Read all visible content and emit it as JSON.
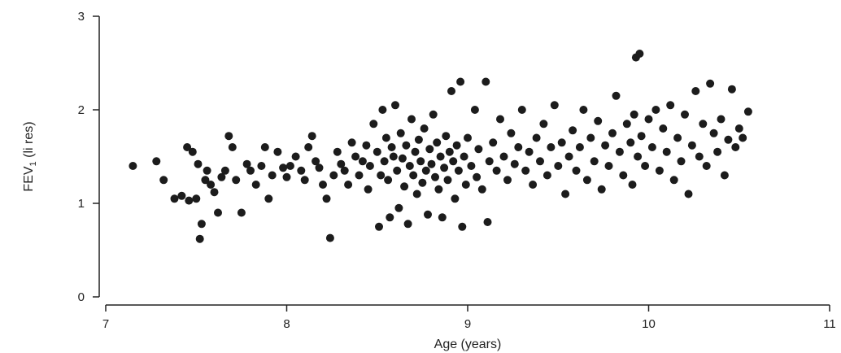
{
  "chart_data": {
    "type": "scatter",
    "title": "",
    "xlabel": "Age (years)",
    "ylabel": "FEV",
    "ylabel_sub": "1",
    "ylabel_unit": " (li res)",
    "xlim": [
      7,
      11
    ],
    "ylim": [
      0,
      3
    ],
    "xticks": [
      7,
      8,
      9,
      10,
      11
    ],
    "xtick_labels": [
      "7",
      "8",
      "9",
      "10",
      "11"
    ],
    "yticks": [
      0,
      1,
      2,
      3
    ],
    "ytick_labels": [
      "0",
      "1",
      "2",
      "3"
    ],
    "grid": false,
    "legend": "none",
    "point_color": "#1c1c1c",
    "series": [
      {
        "values": [
          [
            7.15,
            1.4
          ],
          [
            7.28,
            1.45
          ],
          [
            7.32,
            1.25
          ],
          [
            7.38,
            1.05
          ],
          [
            7.42,
            1.08
          ],
          [
            7.45,
            1.6
          ],
          [
            7.46,
            1.03
          ],
          [
            7.48,
            1.55
          ],
          [
            7.5,
            1.05
          ],
          [
            7.51,
            1.42
          ],
          [
            7.52,
            0.62
          ],
          [
            7.53,
            0.78
          ],
          [
            7.55,
            1.25
          ],
          [
            7.56,
            1.35
          ],
          [
            7.58,
            1.2
          ],
          [
            7.6,
            1.12
          ],
          [
            7.62,
            0.9
          ],
          [
            7.64,
            1.28
          ],
          [
            7.66,
            1.35
          ],
          [
            7.68,
            1.72
          ],
          [
            7.7,
            1.6
          ],
          [
            7.72,
            1.25
          ],
          [
            7.75,
            0.9
          ],
          [
            7.78,
            1.42
          ],
          [
            7.8,
            1.35
          ],
          [
            7.83,
            1.2
          ],
          [
            7.86,
            1.4
          ],
          [
            7.88,
            1.6
          ],
          [
            7.9,
            1.05
          ],
          [
            7.92,
            1.3
          ],
          [
            7.95,
            1.55
          ],
          [
            7.98,
            1.38
          ],
          [
            8.0,
            1.28
          ],
          [
            8.02,
            1.4
          ],
          [
            8.05,
            1.5
          ],
          [
            8.08,
            1.35
          ],
          [
            8.1,
            1.25
          ],
          [
            8.12,
            1.6
          ],
          [
            8.14,
            1.72
          ],
          [
            8.16,
            1.45
          ],
          [
            8.18,
            1.38
          ],
          [
            8.2,
            1.2
          ],
          [
            8.22,
            1.05
          ],
          [
            8.24,
            0.63
          ],
          [
            8.26,
            1.3
          ],
          [
            8.28,
            1.55
          ],
          [
            8.3,
            1.42
          ],
          [
            8.32,
            1.35
          ],
          [
            8.34,
            1.2
          ],
          [
            8.36,
            1.65
          ],
          [
            8.38,
            1.5
          ],
          [
            8.4,
            1.3
          ],
          [
            8.42,
            1.45
          ],
          [
            8.44,
            1.62
          ],
          [
            8.45,
            1.15
          ],
          [
            8.46,
            1.4
          ],
          [
            8.48,
            1.85
          ],
          [
            8.5,
            1.55
          ],
          [
            8.51,
            0.75
          ],
          [
            8.52,
            1.3
          ],
          [
            8.53,
            2.0
          ],
          [
            8.54,
            1.45
          ],
          [
            8.55,
            1.7
          ],
          [
            8.56,
            1.25
          ],
          [
            8.57,
            0.85
          ],
          [
            8.58,
            1.6
          ],
          [
            8.59,
            1.5
          ],
          [
            8.6,
            2.05
          ],
          [
            8.61,
            1.35
          ],
          [
            8.62,
            0.95
          ],
          [
            8.63,
            1.75
          ],
          [
            8.64,
            1.48
          ],
          [
            8.65,
            1.18
          ],
          [
            8.66,
            1.62
          ],
          [
            8.67,
            0.78
          ],
          [
            8.68,
            1.4
          ],
          [
            8.69,
            1.9
          ],
          [
            8.7,
            1.3
          ],
          [
            8.71,
            1.55
          ],
          [
            8.72,
            1.1
          ],
          [
            8.73,
            1.68
          ],
          [
            8.74,
            1.45
          ],
          [
            8.75,
            1.22
          ],
          [
            8.76,
            1.8
          ],
          [
            8.77,
            1.35
          ],
          [
            8.78,
            0.88
          ],
          [
            8.79,
            1.58
          ],
          [
            8.8,
            1.42
          ],
          [
            8.81,
            1.95
          ],
          [
            8.82,
            1.28
          ],
          [
            8.83,
            1.65
          ],
          [
            8.84,
            1.15
          ],
          [
            8.85,
            1.5
          ],
          [
            8.86,
            0.85
          ],
          [
            8.87,
            1.38
          ],
          [
            8.88,
            1.72
          ],
          [
            8.89,
            1.25
          ],
          [
            8.9,
            1.55
          ],
          [
            8.91,
            2.2
          ],
          [
            8.92,
            1.45
          ],
          [
            8.93,
            1.05
          ],
          [
            8.94,
            1.62
          ],
          [
            8.95,
            1.35
          ],
          [
            8.96,
            2.3
          ],
          [
            8.97,
            0.75
          ],
          [
            8.98,
            1.5
          ],
          [
            8.99,
            1.2
          ],
          [
            9.0,
            1.7
          ],
          [
            9.02,
            1.4
          ],
          [
            9.04,
            2.0
          ],
          [
            9.05,
            1.28
          ],
          [
            9.06,
            1.58
          ],
          [
            9.08,
            1.15
          ],
          [
            9.1,
            2.3
          ],
          [
            9.11,
            0.8
          ],
          [
            9.12,
            1.45
          ],
          [
            9.14,
            1.65
          ],
          [
            9.16,
            1.35
          ],
          [
            9.18,
            1.9
          ],
          [
            9.2,
            1.5
          ],
          [
            9.22,
            1.25
          ],
          [
            9.24,
            1.75
          ],
          [
            9.26,
            1.42
          ],
          [
            9.28,
            1.6
          ],
          [
            9.3,
            2.0
          ],
          [
            9.32,
            1.35
          ],
          [
            9.34,
            1.55
          ],
          [
            9.36,
            1.2
          ],
          [
            9.38,
            1.7
          ],
          [
            9.4,
            1.45
          ],
          [
            9.42,
            1.85
          ],
          [
            9.44,
            1.3
          ],
          [
            9.46,
            1.6
          ],
          [
            9.48,
            2.05
          ],
          [
            9.5,
            1.4
          ],
          [
            9.52,
            1.65
          ],
          [
            9.54,
            1.1
          ],
          [
            9.56,
            1.5
          ],
          [
            9.58,
            1.78
          ],
          [
            9.6,
            1.35
          ],
          [
            9.62,
            1.6
          ],
          [
            9.64,
            2.0
          ],
          [
            9.66,
            1.25
          ],
          [
            9.68,
            1.7
          ],
          [
            9.7,
            1.45
          ],
          [
            9.72,
            1.88
          ],
          [
            9.74,
            1.15
          ],
          [
            9.76,
            1.62
          ],
          [
            9.78,
            1.4
          ],
          [
            9.8,
            1.75
          ],
          [
            9.82,
            2.15
          ],
          [
            9.84,
            1.55
          ],
          [
            9.86,
            1.3
          ],
          [
            9.88,
            1.85
          ],
          [
            9.9,
            1.65
          ],
          [
            9.91,
            1.2
          ],
          [
            9.92,
            1.95
          ],
          [
            9.93,
            2.56
          ],
          [
            9.94,
            1.5
          ],
          [
            9.95,
            2.6
          ],
          [
            9.96,
            1.72
          ],
          [
            9.98,
            1.4
          ],
          [
            10.0,
            1.9
          ],
          [
            10.02,
            1.6
          ],
          [
            10.04,
            2.0
          ],
          [
            10.06,
            1.35
          ],
          [
            10.08,
            1.8
          ],
          [
            10.1,
            1.55
          ],
          [
            10.12,
            2.05
          ],
          [
            10.14,
            1.25
          ],
          [
            10.16,
            1.7
          ],
          [
            10.18,
            1.45
          ],
          [
            10.2,
            1.95
          ],
          [
            10.22,
            1.1
          ],
          [
            10.24,
            1.62
          ],
          [
            10.26,
            2.2
          ],
          [
            10.28,
            1.5
          ],
          [
            10.3,
            1.85
          ],
          [
            10.32,
            1.4
          ],
          [
            10.34,
            2.28
          ],
          [
            10.36,
            1.75
          ],
          [
            10.38,
            1.55
          ],
          [
            10.4,
            1.9
          ],
          [
            10.42,
            1.3
          ],
          [
            10.44,
            1.68
          ],
          [
            10.46,
            2.22
          ],
          [
            10.48,
            1.6
          ],
          [
            10.5,
            1.8
          ],
          [
            10.52,
            1.7
          ],
          [
            10.55,
            1.98
          ]
        ]
      }
    ]
  }
}
